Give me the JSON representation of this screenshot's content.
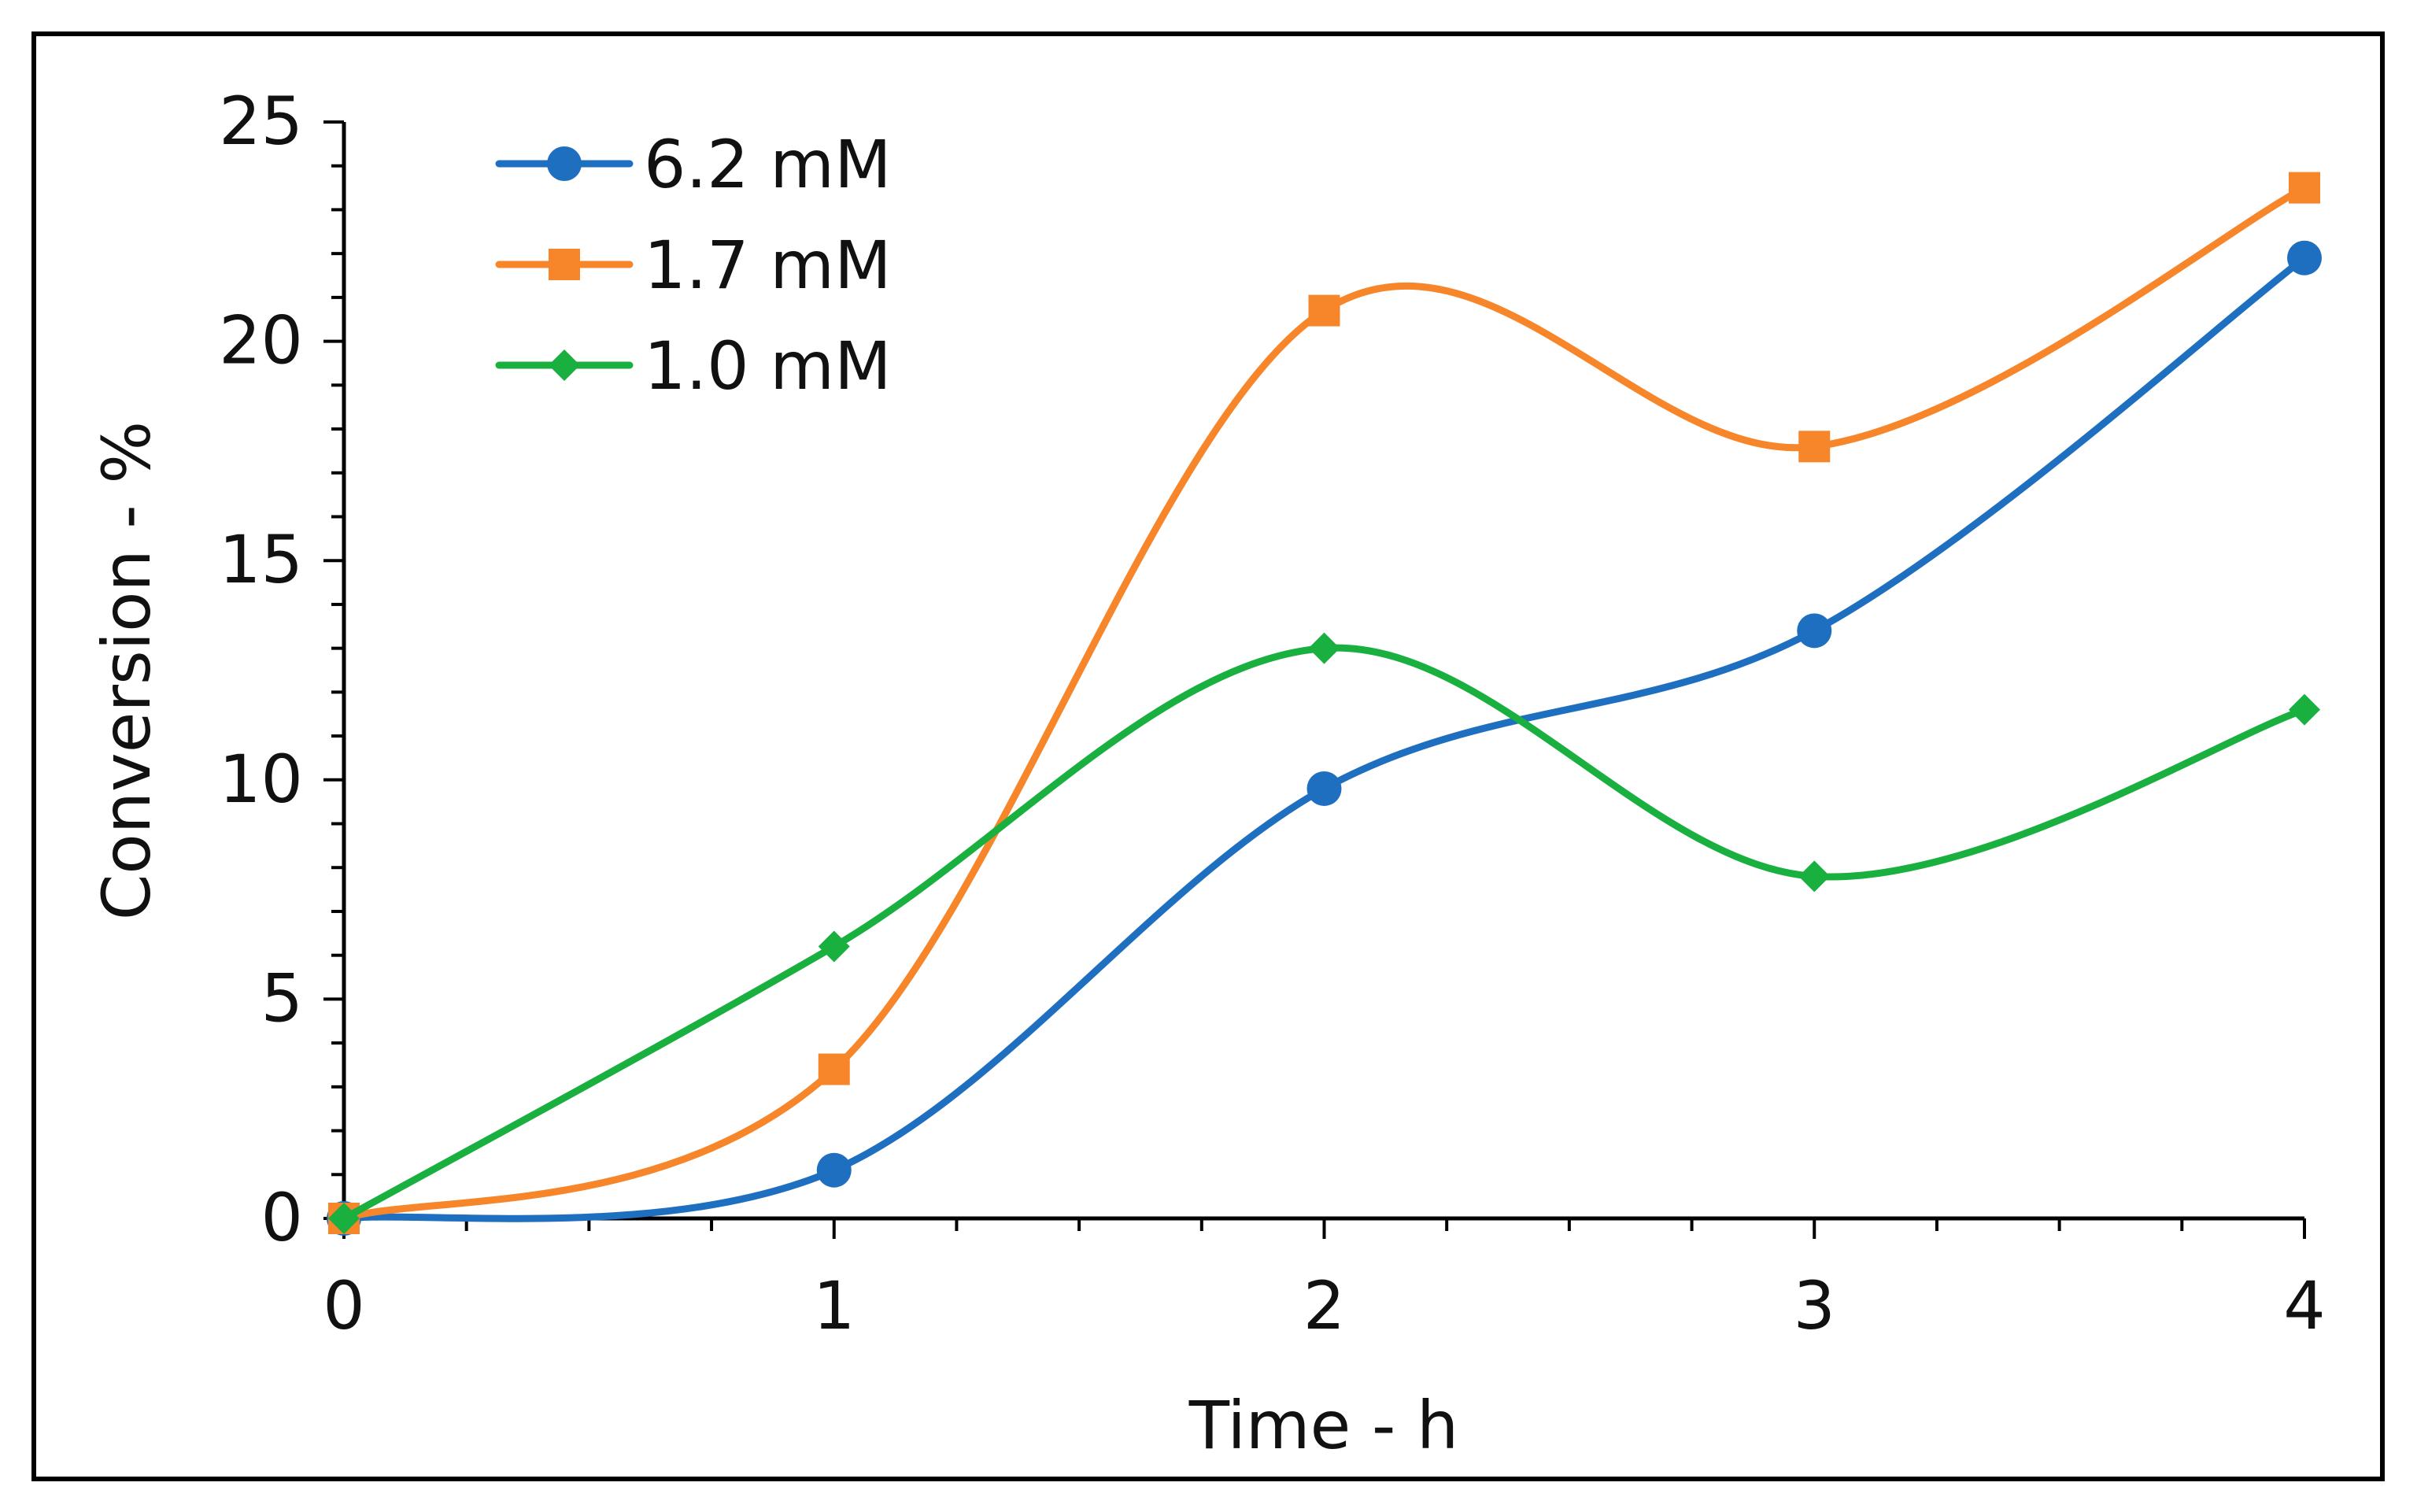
{
  "chart_data": {
    "type": "line",
    "title": "",
    "xlabel": "Time - h",
    "ylabel": "Conversion - %",
    "x": [
      0,
      1,
      2,
      3,
      4
    ],
    "xlim": [
      0,
      4
    ],
    "ylim": [
      0,
      25
    ],
    "xticks": [
      "0",
      "1",
      "2",
      "3",
      "4"
    ],
    "yticks": [
      "0",
      "5",
      "10",
      "15",
      "20",
      "25"
    ],
    "grid": false,
    "legend_position": "top-left",
    "smooth": true,
    "series": [
      {
        "name": "6.2 mM",
        "color": "#1f6fc0",
        "marker": "circle",
        "values": [
          0,
          1.1,
          9.8,
          13.4,
          21.9
        ]
      },
      {
        "name": "1.7 mM",
        "color": "#f7862b",
        "marker": "square",
        "values": [
          0,
          3.4,
          20.7,
          17.6,
          23.5
        ]
      },
      {
        "name": "1.0 mM",
        "color": "#19b040",
        "marker": "diamond",
        "values": [
          0,
          6.2,
          13.0,
          7.8,
          11.6
        ]
      }
    ]
  }
}
